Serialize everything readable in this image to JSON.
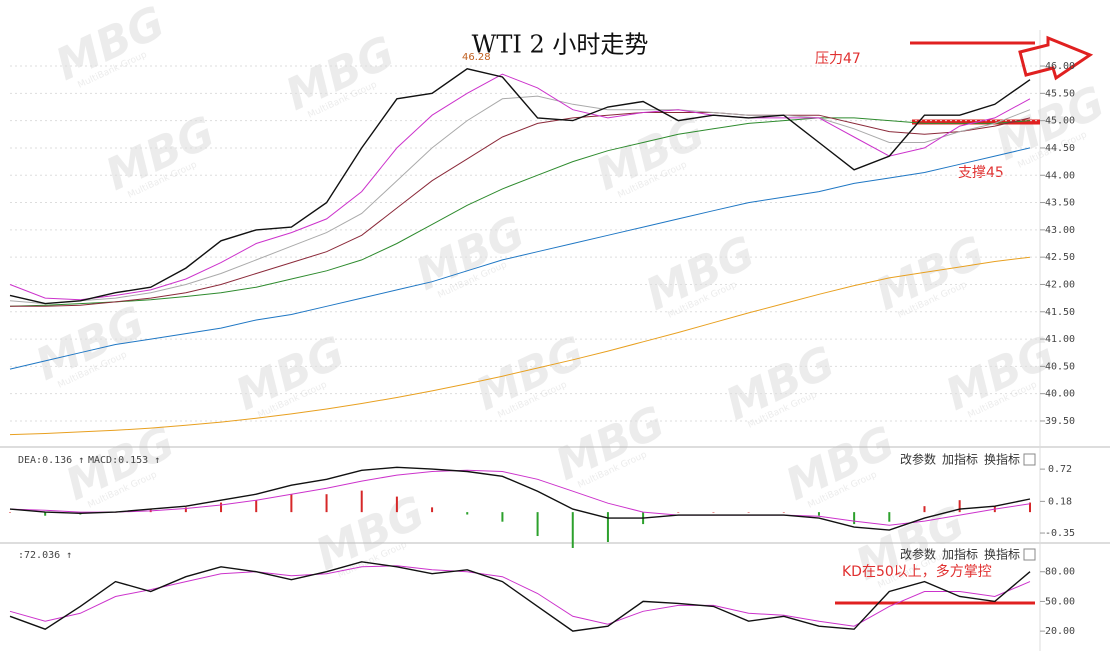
{
  "watermark": "MBG",
  "watermark_sub": "MultiBank Group",
  "chart_data": [
    {
      "type": "line",
      "title": "WTI 2 小时走势",
      "annotations": [
        "压力47",
        "支撑45",
        "46.28"
      ],
      "categories": [
        null,
        null,
        null,
        null,
        null,
        null,
        null,
        null,
        null,
        null,
        null,
        null,
        null,
        null,
        null,
        null,
        null,
        null,
        null,
        null,
        null,
        null,
        null,
        null,
        null,
        null,
        null,
        null,
        null,
        null
      ],
      "ylim": [
        39.06,
        46.66
      ],
      "yticks": [
        {
          "value": 39.5,
          "label": "39.50"
        },
        {
          "value": 40,
          "label": "40.00"
        },
        {
          "value": 40.5,
          "label": "40.50"
        },
        {
          "value": 41,
          "label": "41.00"
        },
        {
          "value": 41.5,
          "label": "41.50"
        },
        {
          "value": 42,
          "label": "42.00"
        },
        {
          "value": 42.5,
          "label": "42.50"
        },
        {
          "value": 43,
          "label": "43.00"
        },
        {
          "value": 43.5,
          "label": "43.50"
        },
        {
          "value": 44,
          "label": "44.00"
        },
        {
          "value": 44.5,
          "label": "44.50"
        },
        {
          "value": 45,
          "label": "45.00"
        },
        {
          "value": 45.5,
          "label": "45.50"
        },
        {
          "value": 46,
          "label": "46.00"
        }
      ],
      "grid": true,
      "series": [
        {
          "color": "#e8a020",
          "values": [
            39.25,
            39.27,
            39.3,
            39.33,
            39.37,
            39.42,
            39.48,
            39.55,
            39.63,
            39.72,
            39.82,
            39.93,
            40.05,
            40.18,
            40.32,
            40.47,
            40.62,
            40.78,
            40.95,
            41.12,
            41.3,
            41.48,
            41.65,
            41.82,
            41.98,
            42.12,
            42.22,
            42.32,
            42.42,
            42.5
          ]
        },
        {
          "color": "#1f77c4",
          "values": [
            40.45,
            40.6,
            40.75,
            40.9,
            41.0,
            41.1,
            41.2,
            41.35,
            41.45,
            41.6,
            41.75,
            41.9,
            42.05,
            42.25,
            42.45,
            42.6,
            42.75,
            42.9,
            43.05,
            43.2,
            43.35,
            43.5,
            43.6,
            43.7,
            43.85,
            43.95,
            44.05,
            44.2,
            44.35,
            44.5
          ]
        },
        {
          "color": "#2e8b2e",
          "values": [
            41.6,
            41.62,
            41.65,
            41.68,
            41.72,
            41.78,
            41.85,
            41.95,
            42.1,
            42.25,
            42.45,
            42.75,
            43.1,
            43.45,
            43.75,
            44.0,
            44.25,
            44.45,
            44.6,
            44.75,
            44.85,
            44.95,
            45.0,
            45.05,
            45.05,
            45.0,
            44.95,
            44.95,
            44.95,
            45.0
          ]
        },
        {
          "color": "#8b2a3a",
          "values": [
            41.6,
            41.6,
            41.62,
            41.68,
            41.75,
            41.85,
            42.0,
            42.2,
            42.4,
            42.6,
            42.9,
            43.4,
            43.9,
            44.3,
            44.7,
            44.95,
            45.05,
            45.1,
            45.15,
            45.15,
            45.15,
            45.1,
            45.1,
            45.1,
            44.95,
            44.8,
            44.75,
            44.8,
            44.9,
            45.05
          ]
        },
        {
          "color": "#aaaaaa",
          "values": [
            41.7,
            41.65,
            41.7,
            41.75,
            41.85,
            42.0,
            42.2,
            42.45,
            42.7,
            42.95,
            43.3,
            43.9,
            44.5,
            45.0,
            45.4,
            45.45,
            45.3,
            45.2,
            45.2,
            45.2,
            45.15,
            45.1,
            45.1,
            45.05,
            44.85,
            44.6,
            44.6,
            44.8,
            44.95,
            45.2
          ]
        },
        {
          "color": "#cc33cc",
          "values": [
            42.0,
            41.75,
            41.72,
            41.8,
            41.9,
            42.1,
            42.4,
            42.75,
            42.95,
            43.2,
            43.7,
            44.5,
            45.1,
            45.5,
            45.85,
            45.6,
            45.2,
            45.05,
            45.15,
            45.2,
            45.1,
            45.05,
            45.05,
            45.05,
            44.7,
            44.35,
            44.5,
            44.9,
            45.05,
            45.4
          ]
        },
        {
          "color": "#111111",
          "values": [
            41.8,
            41.65,
            41.7,
            41.85,
            41.95,
            42.3,
            42.8,
            43.0,
            43.05,
            43.5,
            44.5,
            45.4,
            45.5,
            45.95,
            45.8,
            45.05,
            45.0,
            45.25,
            45.35,
            45.0,
            45.1,
            45.05,
            45.1,
            44.6,
            44.1,
            44.35,
            45.1,
            45.1,
            45.3,
            45.75
          ]
        }
      ]
    },
    {
      "type": "line",
      "labels": [
        "DEA:0.136 ↑",
        "MACD:0.153 ↑"
      ],
      "buttons": [
        "改参数",
        "加指标",
        "换指标"
      ],
      "categories": [
        null,
        null,
        null,
        null,
        null,
        null,
        null,
        null,
        null,
        null,
        null,
        null,
        null,
        null,
        null,
        null,
        null,
        null,
        null,
        null,
        null,
        null,
        null,
        null,
        null,
        null,
        null,
        null,
        null,
        null
      ],
      "ylim": [
        -0.5,
        1.04
      ],
      "yticks": [
        -0.35,
        0.18,
        0.72
      ],
      "grid": false,
      "series": [
        {
          "type": "bar",
          "color": "#d62728",
          "negative_color": "#2ca02c",
          "values": [
            0,
            -0.06,
            -0.04,
            0,
            0.06,
            0.08,
            0.16,
            0.2,
            0.3,
            0.3,
            0.36,
            0.26,
            0.08,
            -0.04,
            -0.16,
            -0.4,
            -0.6,
            -0.5,
            -0.2,
            0,
            0,
            0,
            0,
            -0.06,
            -0.2,
            -0.16,
            0.1,
            0.2,
            0.1,
            0.16
          ]
        },
        {
          "color": "#cc33cc",
          "values": [
            0.05,
            0.03,
            0.0,
            0.0,
            0.02,
            0.06,
            0.12,
            0.2,
            0.3,
            0.4,
            0.52,
            0.62,
            0.68,
            0.7,
            0.68,
            0.55,
            0.35,
            0.15,
            0.0,
            -0.05,
            -0.05,
            -0.05,
            -0.05,
            -0.07,
            -0.15,
            -0.22,
            -0.15,
            -0.05,
            0.05,
            0.14
          ]
        },
        {
          "color": "#111111",
          "values": [
            0.05,
            0.0,
            -0.02,
            0.0,
            0.05,
            0.1,
            0.2,
            0.3,
            0.45,
            0.55,
            0.7,
            0.75,
            0.72,
            0.68,
            0.6,
            0.35,
            0.05,
            -0.1,
            -0.1,
            -0.05,
            -0.05,
            -0.05,
            -0.05,
            -0.1,
            -0.25,
            -0.3,
            -0.1,
            0.05,
            0.1,
            0.22
          ]
        }
      ]
    },
    {
      "type": "line",
      "labels": [
        ":72.036 ↑"
      ],
      "buttons": [
        "改参数",
        "加指标",
        "换指标"
      ],
      "annotations": [
        "KD在50以上，多方掌控"
      ],
      "categories": [
        null,
        null,
        null,
        null,
        null,
        null,
        null,
        null,
        null,
        null,
        null,
        null,
        null,
        null,
        null,
        null,
        null,
        null,
        null,
        null,
        null,
        null,
        null,
        null,
        null,
        null,
        null,
        null,
        null,
        null
      ],
      "ylim": [
        6,
        107
      ],
      "yticks": [
        {
          "value": 20,
          "label": "20.00"
        },
        {
          "value": 50,
          "label": "50.00"
        },
        {
          "value": 80,
          "label": "80.00"
        }
      ],
      "grid": false,
      "series": [
        {
          "color": "#cc33cc",
          "values": [
            40,
            30,
            38,
            55,
            62,
            70,
            78,
            80,
            76,
            78,
            85,
            86,
            82,
            80,
            75,
            58,
            35,
            27,
            40,
            46,
            46,
            38,
            36,
            30,
            25,
            45,
            60,
            60,
            55,
            70
          ]
        },
        {
          "color": "#111111",
          "values": [
            35,
            22,
            45,
            70,
            60,
            75,
            85,
            80,
            72,
            80,
            90,
            85,
            78,
            82,
            70,
            45,
            20,
            25,
            50,
            48,
            45,
            30,
            35,
            25,
            22,
            60,
            70,
            55,
            50,
            80
          ]
        }
      ]
    }
  ]
}
